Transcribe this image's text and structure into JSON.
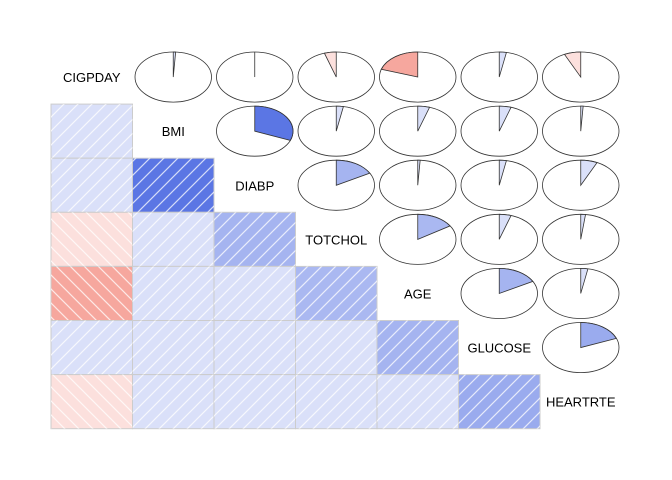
{
  "chart_data": {
    "type": "corrgram",
    "title": "",
    "variables": [
      "CIGPDAY",
      "BMI",
      "DIABP",
      "TOTCHOL",
      "AGE",
      "GLUCOSE",
      "HEARTRTE"
    ],
    "correlations": [
      [
        1.0,
        0.01,
        0.0,
        -0.05,
        -0.2,
        0.03,
        -0.07
      ],
      [
        0.01,
        1.0,
        0.31,
        0.03,
        0.05,
        0.05,
        0.01
      ],
      [
        0.0,
        0.31,
        1.0,
        0.17,
        0.01,
        0.03,
        0.07
      ],
      [
        -0.05,
        0.03,
        0.17,
        1.0,
        0.16,
        0.05,
        0.02
      ],
      [
        -0.2,
        0.05,
        0.01,
        0.16,
        1.0,
        0.17,
        0.03
      ],
      [
        0.03,
        0.05,
        0.03,
        0.05,
        0.17,
        1.0,
        0.19
      ],
      [
        -0.07,
        0.01,
        0.07,
        0.02,
        0.03,
        0.19,
        1.0
      ]
    ],
    "lower_panel": "shade",
    "upper_panel": "pie",
    "diagonal": "variable-names",
    "colors": {
      "positive": "#3355dd",
      "negative": "#ee5544",
      "pie_outline": "#333333",
      "grid": "#cccccc"
    }
  }
}
